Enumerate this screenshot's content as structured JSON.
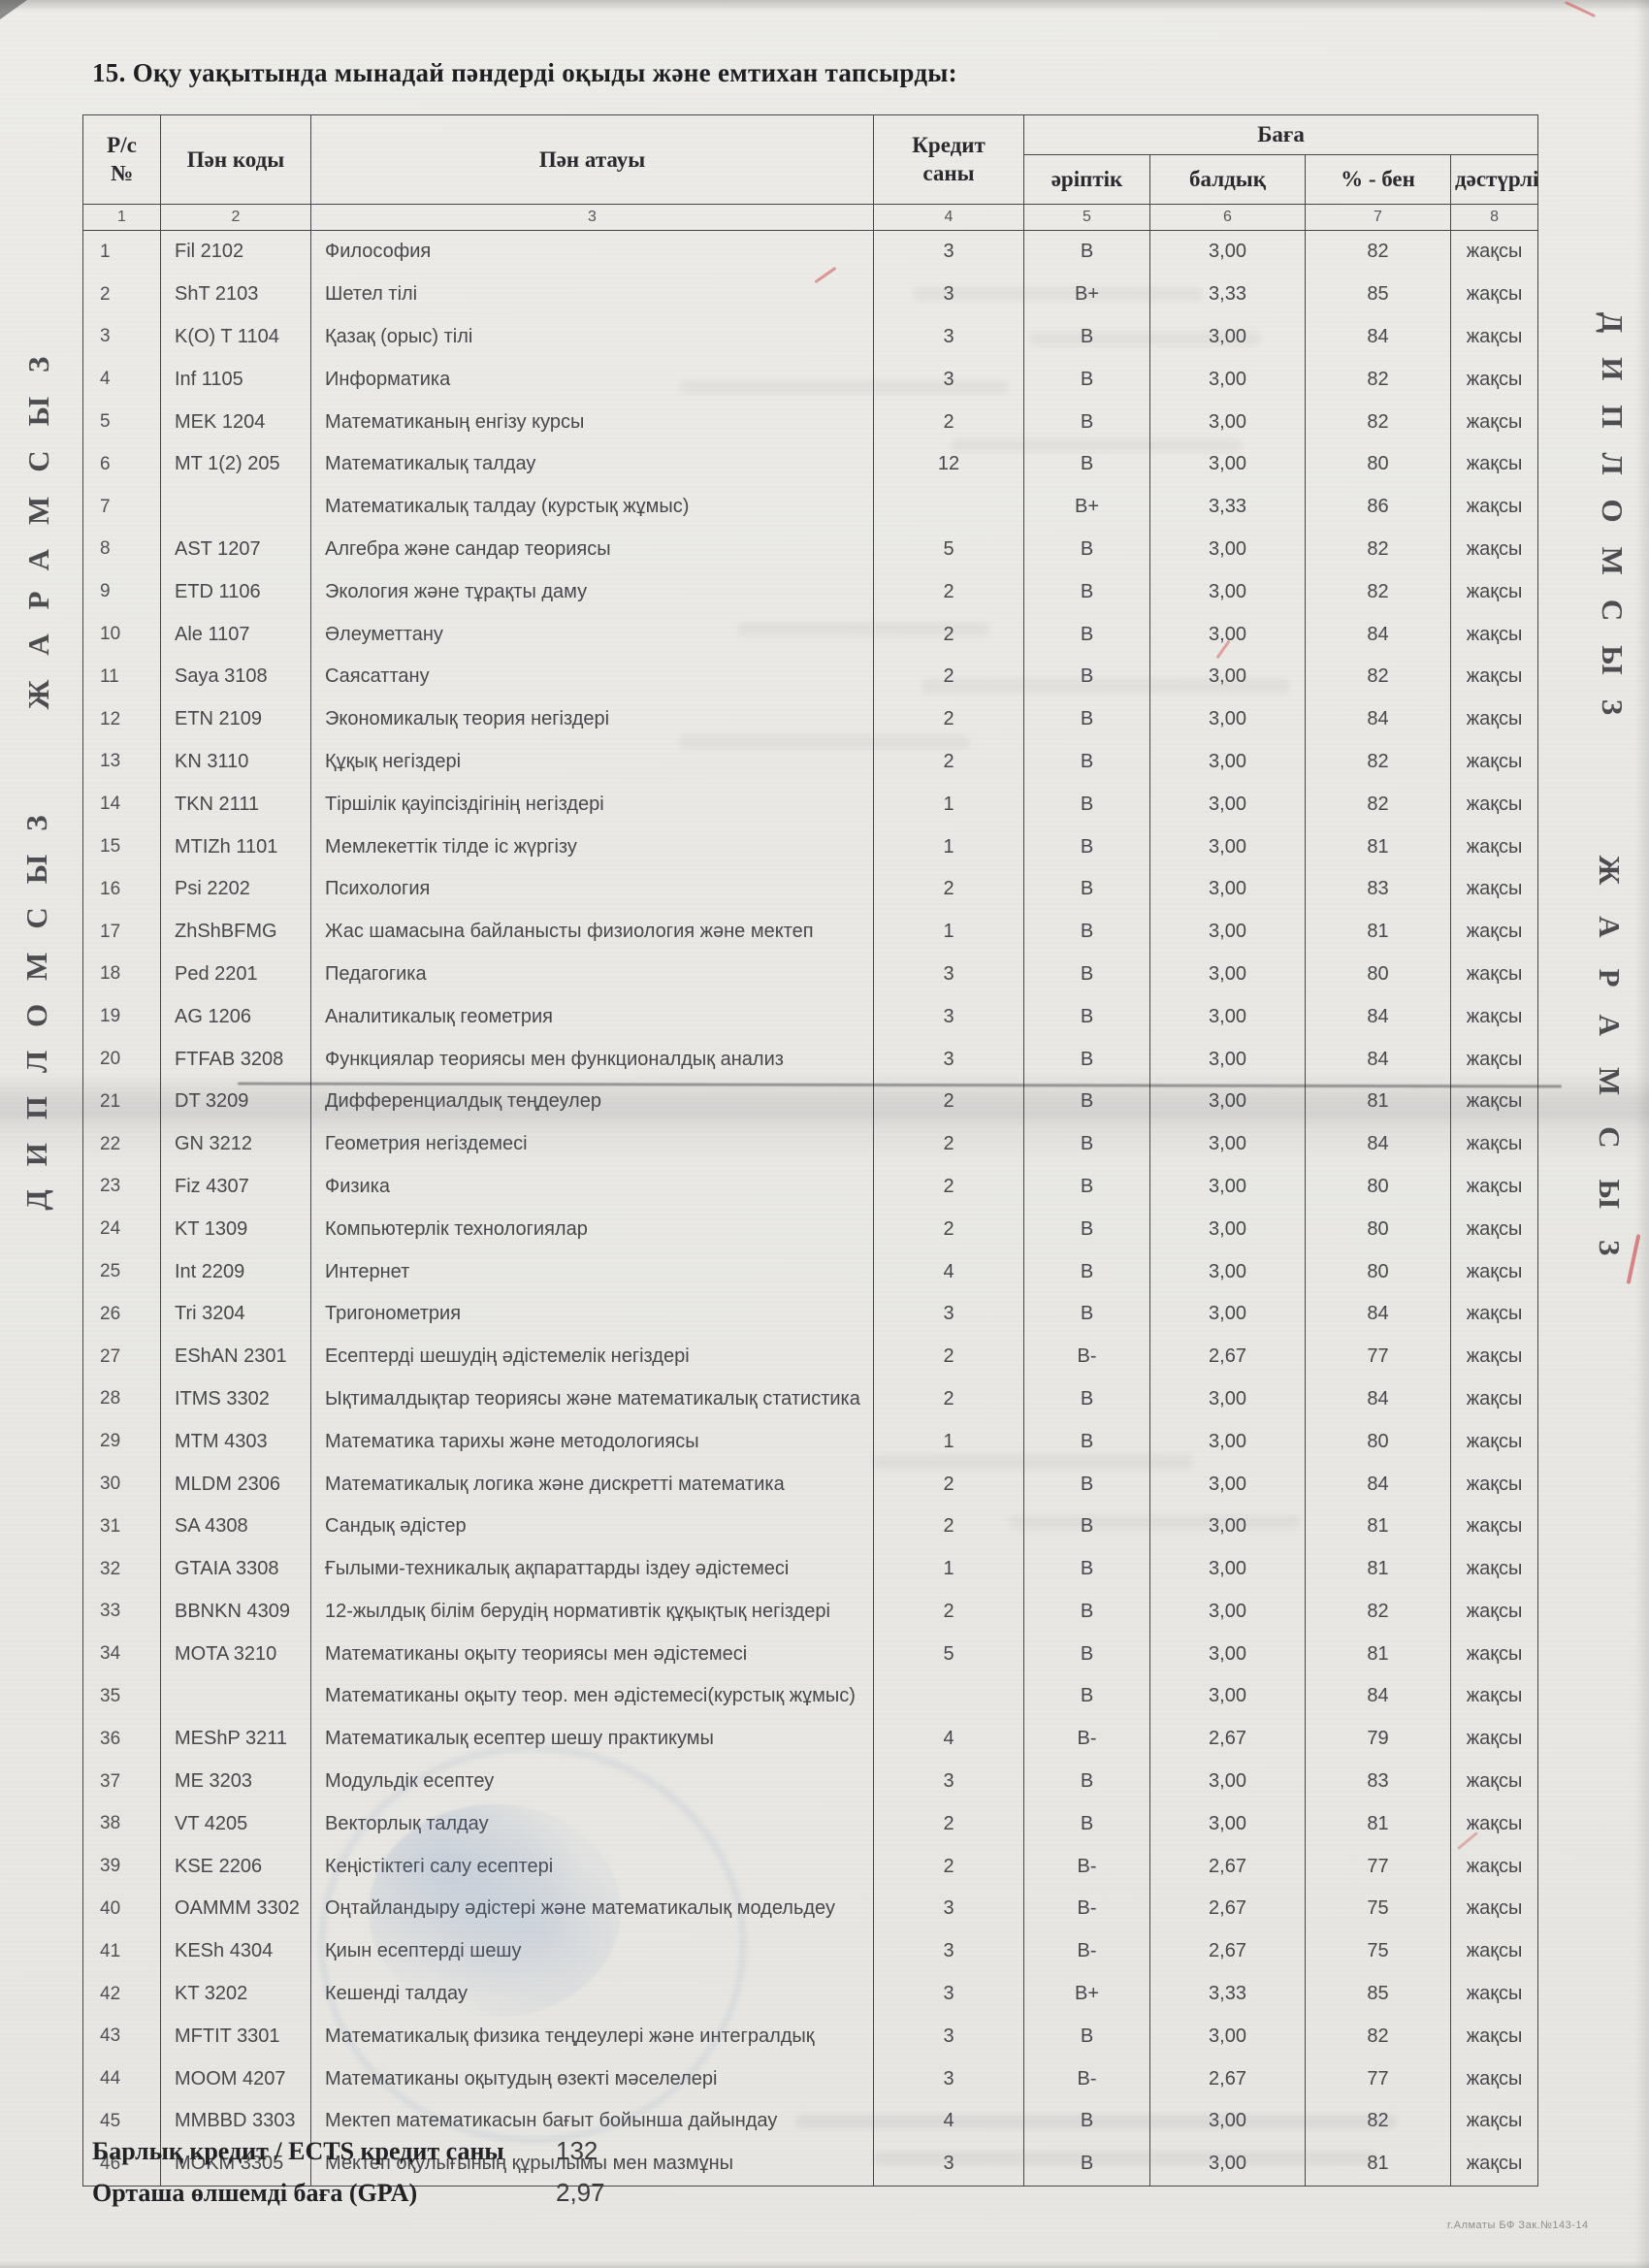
{
  "page": {
    "section_title": "15. Оқу уақытында мынадай пәндерді оқыды және емтихан тапсырды:",
    "footnote": "г.Алматы БФ Зак.№143-14"
  },
  "watermarks": {
    "left_top": "ЖАРАМСЫЗ",
    "left_bottom": "ДИПЛОМСЫЗ",
    "right_top": "ДИПЛОМСЫЗ",
    "right_bottom": "ЖАРАМСЫЗ"
  },
  "table": {
    "headers": {
      "row_num_line1": "Р/с",
      "row_num_line2": "№",
      "code": "Пән коды",
      "name": "Пән атауы",
      "credits_line1": "Кредит",
      "credits_line2": "саны",
      "grade_group": "Баға",
      "grade_letter": "әріптік",
      "grade_score": "балдық",
      "grade_percent": "% - бен",
      "grade_traditional": "дәстүрлі"
    },
    "column_numbers": [
      "1",
      "2",
      "3",
      "4",
      "5",
      "6",
      "7",
      "8"
    ],
    "rows": [
      [
        "1",
        "Fil 2102",
        "Философия",
        "3",
        "B",
        "3,00",
        "82",
        "жақсы"
      ],
      [
        "2",
        "ShT 2103",
        "Шетел тілі",
        "3",
        "B+",
        "3,33",
        "85",
        "жақсы"
      ],
      [
        "3",
        "K(O) T 1104",
        "Қазақ (орыс) тілі",
        "3",
        "B",
        "3,00",
        "84",
        "жақсы"
      ],
      [
        "4",
        "Inf 1105",
        "Информатика",
        "3",
        "B",
        "3,00",
        "82",
        "жақсы"
      ],
      [
        "5",
        "MEK 1204",
        "Математиканың енгізу курсы",
        "2",
        "B",
        "3,00",
        "82",
        "жақсы"
      ],
      [
        "6",
        "MT 1(2) 205",
        "Математикалық талдау",
        "12",
        "B",
        "3,00",
        "80",
        "жақсы"
      ],
      [
        "7",
        "",
        "Математикалық талдау (курстық жұмыс)",
        "",
        "B+",
        "3,33",
        "86",
        "жақсы"
      ],
      [
        "8",
        "AST 1207",
        "Алгебра және сандар теориясы",
        "5",
        "B",
        "3,00",
        "82",
        "жақсы"
      ],
      [
        "9",
        "ETD 1106",
        "Экология және тұрақты даму",
        "2",
        "B",
        "3,00",
        "82",
        "жақсы"
      ],
      [
        "10",
        "Ale 1107",
        "Әлеуметтану",
        "2",
        "B",
        "3,00",
        "84",
        "жақсы"
      ],
      [
        "11",
        "Saya 3108",
        "Саясаттану",
        "2",
        "B",
        "3,00",
        "82",
        "жақсы"
      ],
      [
        "12",
        "ETN 2109",
        "Экономикалық теория негіздері",
        "2",
        "B",
        "3,00",
        "84",
        "жақсы"
      ],
      [
        "13",
        "KN 3110",
        "Құқық негіздері",
        "2",
        "B",
        "3,00",
        "82",
        "жақсы"
      ],
      [
        "14",
        "TKN 2111",
        "Тіршілік қауіпсіздігінің негіздері",
        "1",
        "B",
        "3,00",
        "82",
        "жақсы"
      ],
      [
        "15",
        "MTIZh 1101",
        "Мемлекеттік тілде іс жүргізу",
        "1",
        "B",
        "3,00",
        "81",
        "жақсы"
      ],
      [
        "16",
        "Psi 2202",
        "Психология",
        "2",
        "B",
        "3,00",
        "83",
        "жақсы"
      ],
      [
        "17",
        "ZhShBFMG",
        "Жас шамасына байланысты физиология және мектеп",
        "1",
        "B",
        "3,00",
        "81",
        "жақсы"
      ],
      [
        "18",
        "Ped 2201",
        "Педагогика",
        "3",
        "B",
        "3,00",
        "80",
        "жақсы"
      ],
      [
        "19",
        "AG 1206",
        "Аналитикалық геометрия",
        "3",
        "B",
        "3,00",
        "84",
        "жақсы"
      ],
      [
        "20",
        "FTFAB 3208",
        "Функциялар теориясы мен функционалдық анализ",
        "3",
        "B",
        "3,00",
        "84",
        "жақсы"
      ],
      [
        "21",
        "DT 3209",
        "Дифференциалдық теңдеулер",
        "2",
        "B",
        "3,00",
        "81",
        "жақсы"
      ],
      [
        "22",
        "GN 3212",
        "Геометрия негіздемесі",
        "2",
        "B",
        "3,00",
        "84",
        "жақсы"
      ],
      [
        "23",
        "Fiz 4307",
        "Физика",
        "2",
        "B",
        "3,00",
        "80",
        "жақсы"
      ],
      [
        "24",
        "KT 1309",
        "Компьютерлік технологиялар",
        "2",
        "B",
        "3,00",
        "80",
        "жақсы"
      ],
      [
        "25",
        "Int 2209",
        "Интернет",
        "4",
        "B",
        "3,00",
        "80",
        "жақсы"
      ],
      [
        "26",
        "Tri 3204",
        "Тригонометрия",
        "3",
        "B",
        "3,00",
        "84",
        "жақсы"
      ],
      [
        "27",
        "EShAN 2301",
        "Есептерді шешудің әдістемелік негіздері",
        "2",
        "B-",
        "2,67",
        "77",
        "жақсы"
      ],
      [
        "28",
        "ITMS 3302",
        "Ықтималдықтар теориясы және математикалық статистика",
        "2",
        "B",
        "3,00",
        "84",
        "жақсы"
      ],
      [
        "29",
        "MTM 4303",
        "Математика тарихы және методологиясы",
        "1",
        "B",
        "3,00",
        "80",
        "жақсы"
      ],
      [
        "30",
        "MLDM 2306",
        "Математикалық логика және дискретті математика",
        "2",
        "B",
        "3,00",
        "84",
        "жақсы"
      ],
      [
        "31",
        "SA 4308",
        "Сандық әдістер",
        "2",
        "B",
        "3,00",
        "81",
        "жақсы"
      ],
      [
        "32",
        "GTAIA 3308",
        "Ғылыми-техникалық ақпараттарды іздеу әдістемесі",
        "1",
        "B",
        "3,00",
        "81",
        "жақсы"
      ],
      [
        "33",
        "BBNKN 4309",
        "12-жылдық білім берудің нормативтік құқықтық негіздері",
        "2",
        "B",
        "3,00",
        "82",
        "жақсы"
      ],
      [
        "34",
        "MOTA 3210",
        "Математиканы оқыту теориясы мен әдістемесі",
        "5",
        "B",
        "3,00",
        "81",
        "жақсы"
      ],
      [
        "35",
        "",
        "Математиканы оқыту теор. мен әдістемесі(курстық жұмыс)",
        "",
        "B",
        "3,00",
        "84",
        "жақсы"
      ],
      [
        "36",
        "MEShP 3211",
        "Математикалық есептер шешу практикумы",
        "4",
        "B-",
        "2,67",
        "79",
        "жақсы"
      ],
      [
        "37",
        "ME 3203",
        "Модульдік есептеу",
        "3",
        "B",
        "3,00",
        "83",
        "жақсы"
      ],
      [
        "38",
        "VT 4205",
        "Векторлық талдау",
        "2",
        "B",
        "3,00",
        "81",
        "жақсы"
      ],
      [
        "39",
        "KSE 2206",
        "Кеңістіктегі салу есептері",
        "2",
        "B-",
        "2,67",
        "77",
        "жақсы"
      ],
      [
        "40",
        "OAMMM 3302",
        "Оңтайландыру әдістері және математикалық модельдеу",
        "3",
        "B-",
        "2,67",
        "75",
        "жақсы"
      ],
      [
        "41",
        "KESh 4304",
        "Қиын есептерді шешу",
        "3",
        "B-",
        "2,67",
        "75",
        "жақсы"
      ],
      [
        "42",
        "KT 3202",
        "Кешенді талдау",
        "3",
        "B+",
        "3,33",
        "85",
        "жақсы"
      ],
      [
        "43",
        "MFTIT 3301",
        "Математикалық физика теңдеулері және интегралдық",
        "3",
        "B",
        "3,00",
        "82",
        "жақсы"
      ],
      [
        "44",
        "MOOM 4207",
        "Математиканы оқытудың өзекті мәселелері",
        "3",
        "B-",
        "2,67",
        "77",
        "жақсы"
      ],
      [
        "45",
        "MMBBD 3303",
        "Мектеп математикасын бағыт бойынша дайындау",
        "4",
        "B",
        "3,00",
        "82",
        "жақсы"
      ],
      [
        "46",
        "MOKM 3305",
        "Мектеп оқулығының құрылымы мен мазмұны",
        "3",
        "B",
        "3,00",
        "81",
        "жақсы"
      ]
    ]
  },
  "summary": {
    "total_credits_label": "Барлық кредит / ECTS кредит саны",
    "total_credits_value": "132",
    "gpa_label": "Орташа өлшемді баға (GPA)",
    "gpa_value": "2,97"
  }
}
